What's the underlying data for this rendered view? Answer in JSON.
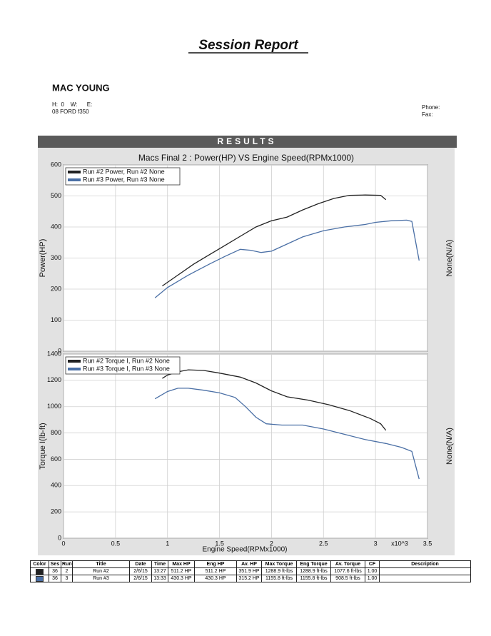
{
  "header": {
    "title": "Session Report",
    "customer": "MAC YOUNG",
    "hwe": "H:  0    W:      E:",
    "vehicle": "08 FORD f350",
    "phone": "Phone:",
    "fax": "Fax:",
    "section": "RESULTS"
  },
  "chart_data": [
    {
      "type": "line",
      "title": "Macs Final 2 : Power(HP) VS Engine Speed(RPMx1000)",
      "ylabel": "Power(HP)",
      "y2label": "None(N/A)",
      "xlim": [
        0,
        3.5
      ],
      "xticks": [
        0,
        0.5,
        1,
        1.5,
        2,
        2.5,
        3,
        3.5
      ],
      "ylim": [
        0,
        600
      ],
      "yticks": [
        0,
        100,
        200,
        300,
        400,
        500,
        600
      ],
      "grid": true,
      "legend": "top-left",
      "series": [
        {
          "name": "Run #2 Power, Run #2 None",
          "color": "#222222",
          "x": [
            0.95,
            1.1,
            1.25,
            1.4,
            1.55,
            1.7,
            1.85,
            2.0,
            2.15,
            2.3,
            2.45,
            2.6,
            2.75,
            2.9,
            3.05,
            3.1
          ],
          "values": [
            210,
            245,
            280,
            310,
            340,
            370,
            400,
            420,
            432,
            455,
            475,
            492,
            502,
            503,
            502,
            488
          ]
        },
        {
          "name": "Run #3 Power, Run #3 None",
          "color": "#4a6fa5",
          "x": [
            0.88,
            1.0,
            1.2,
            1.4,
            1.55,
            1.7,
            1.8,
            1.9,
            2.0,
            2.15,
            2.3,
            2.5,
            2.7,
            2.9,
            3.0,
            3.15,
            3.3,
            3.35,
            3.42
          ],
          "values": [
            172,
            205,
            245,
            280,
            305,
            328,
            325,
            318,
            322,
            345,
            368,
            388,
            400,
            408,
            415,
            420,
            422,
            418,
            292
          ]
        }
      ]
    },
    {
      "type": "line",
      "ylabel": "Torque I(lb-ft)",
      "y2label": "None(N/A)",
      "xlabel": "Engine Speed(RPMx1000)",
      "xunit": "x10^3",
      "xlim": [
        0,
        3.5
      ],
      "xticks": [
        0,
        0.5,
        1,
        1.5,
        2,
        2.5,
        3,
        3.5
      ],
      "ylim": [
        0,
        1400
      ],
      "yticks": [
        0,
        200,
        400,
        600,
        800,
        1000,
        1200,
        1400
      ],
      "grid": true,
      "legend": "top-left",
      "series": [
        {
          "name": "Run #2 Torque I, Run #2 None",
          "color": "#222222",
          "x": [
            0.95,
            1.0,
            1.1,
            1.2,
            1.35,
            1.5,
            1.7,
            1.85,
            2.0,
            2.15,
            2.35,
            2.55,
            2.75,
            2.95,
            3.05,
            3.1
          ],
          "values": [
            1215,
            1240,
            1265,
            1280,
            1275,
            1255,
            1225,
            1180,
            1120,
            1075,
            1050,
            1015,
            970,
            910,
            870,
            820
          ]
        },
        {
          "name": "Run #3 Torque I, Run #3 None",
          "color": "#4a6fa5",
          "x": [
            0.88,
            1.0,
            1.1,
            1.2,
            1.35,
            1.5,
            1.65,
            1.75,
            1.85,
            1.95,
            2.1,
            2.3,
            2.5,
            2.7,
            2.9,
            3.1,
            3.25,
            3.35,
            3.42
          ],
          "values": [
            1060,
            1115,
            1140,
            1140,
            1125,
            1105,
            1070,
            1000,
            920,
            870,
            860,
            860,
            830,
            790,
            750,
            720,
            690,
            660,
            450
          ]
        }
      ]
    }
  ],
  "table": {
    "columns": [
      "Color",
      "Ses",
      "Run",
      "Title",
      "Date",
      "Time",
      "Max HP",
      "Eng HP",
      "Av. HP",
      "Max Torque",
      "Eng Torque",
      "Av. Torque",
      "CF",
      "Description"
    ],
    "rows": [
      [
        "36",
        "2",
        "Run #2",
        "2/6/15",
        "13:27",
        "511.2 HP",
        "511.2 HP",
        "351.9 HP",
        "1288.9 ft-lbs",
        "1288.9 ft-lbs",
        "1077.6 ft-lbs",
        "1.00"
      ],
      [
        "36",
        "3",
        "Run #3",
        "2/6/15",
        "13:33",
        "430.3 HP",
        "430.3 HP",
        "315.2 HP",
        "1155.8 ft-lbs",
        "1155.8 ft-lbs",
        "908.5 ft-lbs",
        "1.00"
      ]
    ]
  }
}
